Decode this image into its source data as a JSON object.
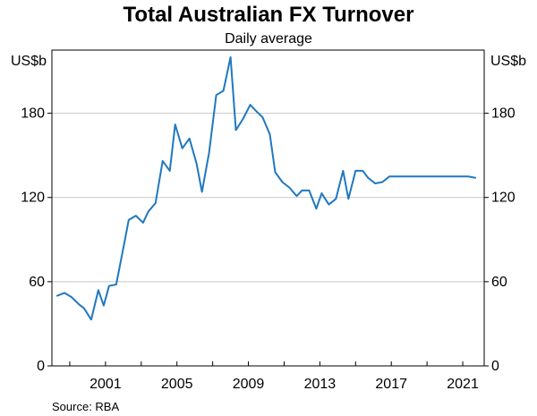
{
  "chart_data": {
    "type": "line",
    "title": "Total Australian FX Turnover",
    "subtitle": "Daily average",
    "units_left": "US$b",
    "units_right": "US$b",
    "source": "Source:   RBA",
    "xlabel": "",
    "ylabel": "",
    "xlim": [
      1998.0,
      2022.2
    ],
    "ylim": [
      0,
      225
    ],
    "y_ticks": [
      0,
      60,
      120,
      180
    ],
    "y_tick_labels": [
      "0",
      "60",
      "120",
      "180"
    ],
    "x_ticks": [
      2001,
      2005,
      2009,
      2013,
      2017,
      2021
    ],
    "x_tick_labels": [
      "2001",
      "2005",
      "2009",
      "2013",
      "2017",
      "2021"
    ],
    "x_minor_ticks": [
      1999,
      2001,
      2003,
      2005,
      2007,
      2009,
      2011,
      2013,
      2015,
      2017,
      2019,
      2021
    ],
    "grid": true,
    "legend": "none",
    "colors": {
      "series": "#1f78c1"
    },
    "series": [
      {
        "x": [
          1998.3,
          1998.7,
          1999.1,
          1999.5,
          1999.8,
          2000.2,
          2000.6,
          2000.9,
          2001.2,
          2001.6,
          2002.0,
          2002.3,
          2002.7,
          2003.1,
          2003.4,
          2003.8,
          2004.2,
          2004.6,
          2004.9,
          2005.3,
          2005.7,
          2006.1,
          2006.4,
          2006.8,
          2007.2,
          2007.6,
          2008.0,
          2008.3,
          2008.7,
          2009.1,
          2009.4,
          2009.8,
          2010.2,
          2010.5,
          2010.9,
          2011.3,
          2011.7,
          2012.0,
          2012.4,
          2012.8,
          2013.1,
          2013.5,
          2013.9,
          2014.3,
          2014.6,
          2015.0,
          2015.4,
          2015.7,
          2016.1,
          2016.5,
          2016.9,
          2017.2,
          2017.6,
          2018.0,
          2018.4,
          2018.7,
          2019.1,
          2019.5,
          2019.8,
          2020.2,
          2020.6,
          2021.0,
          2021.3,
          2021.7
        ],
        "values": [
          50,
          52,
          49,
          44,
          41,
          33,
          54,
          43,
          57,
          58,
          84,
          104,
          107,
          102,
          110,
          116,
          146,
          139,
          172,
          155,
          162,
          144,
          124,
          152,
          193,
          196,
          220,
          168,
          176,
          186,
          182,
          177,
          165,
          138,
          131,
          127,
          121,
          125,
          125,
          112,
          123,
          115,
          119,
          139,
          119,
          139,
          139,
          134,
          130,
          131,
          135,
          135,
          135,
          135,
          135,
          135,
          135,
          135,
          135,
          135,
          135,
          135,
          135,
          134
        ]
      }
    ]
  }
}
